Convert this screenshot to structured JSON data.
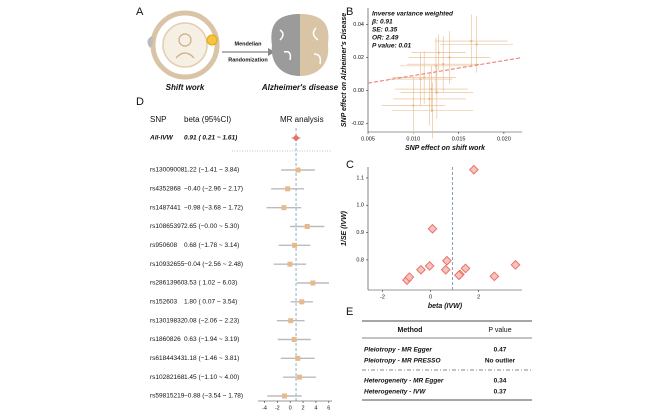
{
  "diagram": {
    "panel": "A",
    "exposure": "Shift work",
    "method": [
      "Mendelian",
      "Randomization"
    ],
    "outcome": "Alzheimer's disease"
  },
  "chart_data": [
    {
      "panel": "B",
      "type": "scatter",
      "xlabel": "SNP effect on shift work",
      "ylabel": "SNP effect on Alzheimer's Disease",
      "annotations": [
        "Inverse variance weighted",
        "β: 0.91",
        "SE: 0.35",
        "OR: 2.49",
        "P value: 0.01"
      ],
      "fit_slope": 0.91,
      "color": "#e8b98a",
      "line_color": "#e8736b",
      "marker": "circle",
      "x": [
        0.0125,
        0.0118,
        0.0121,
        0.017,
        0.0112,
        0.0126,
        0.0164,
        0.0128,
        0.012,
        0.0108,
        0.0133,
        0.014,
        0.01
      ],
      "values": [
        0.015,
        -0.005,
        -0.012,
        0.028,
        0.008,
        -0.001,
        0.03,
        0.023,
        0.001,
        0.007,
        0.016,
        0.02,
        -0.009
      ],
      "xerr": [
        0.004,
        0.004,
        0.0045,
        0.004,
        0.0035,
        0.004,
        0.004,
        0.003,
        0.004,
        0.0035,
        0.004,
        0.0045,
        0.0035
      ],
      "yerr": [
        0.017,
        0.016,
        0.017,
        0.017,
        0.016,
        0.016,
        0.016,
        0.011,
        0.014,
        0.016,
        0.017,
        0.016,
        0.017
      ],
      "xlim": [
        0.005,
        0.022
      ],
      "xticks": [
        {
          "value": 0.005,
          "label": "0.005"
        },
        {
          "value": 0.01,
          "label": "0.010"
        },
        {
          "value": 0.015,
          "label": "0.015"
        },
        {
          "value": 0.02,
          "label": "0.020"
        }
      ],
      "ylim": [
        -0.025,
        0.05
      ],
      "yticks": [
        {
          "value": -0.02,
          "label": "-0.02"
        },
        {
          "value": 0,
          "label": "0.00"
        },
        {
          "value": 0.02,
          "label": "0.02"
        },
        {
          "value": 0.04,
          "label": "0.04"
        }
      ]
    },
    {
      "panel": "D",
      "type": "forest",
      "columns": [
        "SNP",
        "beta (95%CI)",
        "MR analysis"
      ],
      "categories": [
        "All-IVW",
        "rs13009008",
        "rs4352868",
        "rs1487441",
        "rs10865397",
        "rs950608",
        "rs10932655",
        "rs28613960",
        "rs152603",
        "rs13019832",
        "rs1860826",
        "rs61844343",
        "rs10282168",
        "rs59815219"
      ],
      "values": [
        0.91,
        1.22,
        -0.4,
        -0.98,
        2.65,
        0.68,
        -0.04,
        3.53,
        1.8,
        0.08,
        0.63,
        1.18,
        1.45,
        -0.88
      ],
      "lower": [
        0.21,
        -1.41,
        -2.96,
        -3.68,
        -0.0,
        -1.78,
        -2.56,
        1.02,
        0.07,
        -2.06,
        -1.94,
        -1.46,
        -1.1,
        -3.54
      ],
      "upper": [
        1.61,
        3.84,
        2.17,
        1.72,
        5.3,
        3.14,
        2.48,
        6.03,
        3.54,
        2.23,
        3.19,
        3.81,
        4.0,
        1.78
      ],
      "value_labels": [
        "0.91 ( 0.21 ~ 1.61)",
        "1.22 (−1.41 ~ 3.84)",
        "−0.40 (−2.96 ~ 2.17)",
        "−0.98 (−3.68 ~ 1.72)",
        "2.65 (−0.00 ~ 5.30)",
        "0.68 (−1.78 ~ 3.14)",
        "−0.04 (−2.56 ~ 2.48)",
        "3.53 ( 1.02 ~ 6.03)",
        "1.80 ( 0.07 ~ 3.54)",
        "0.08 (−2.06 ~ 2.23)",
        "0.63 (−1.94 ~ 3.19)",
        "1.18 (−1.46 ~ 3.81)",
        "1.45 (−1.10 ~ 4.00)",
        "−0.88 (−3.54 ~ 1.78)"
      ],
      "ref_line": 0.91,
      "color": "#e8b98a",
      "summary_color": "#e8736b",
      "xlim": [
        -5,
        6.5
      ],
      "xticks": [
        -4,
        -2,
        0,
        2,
        4,
        6
      ]
    },
    {
      "panel": "C",
      "type": "scatter",
      "xlabel": "beta (IVW)",
      "ylabel": "1/SE (IVW)",
      "ref_line": 0.91,
      "color": "#e8736b",
      "marker": "diamond",
      "x": [
        1.22,
        -0.4,
        -0.98,
        2.65,
        0.68,
        -0.04,
        3.53,
        1.8,
        0.08,
        0.63,
        1.18,
        1.45,
        -0.88
      ],
      "values": [
        0.747,
        0.764,
        0.726,
        0.74,
        0.797,
        0.778,
        0.782,
        1.13,
        0.914,
        0.764,
        0.744,
        0.769,
        0.737
      ],
      "xlim": [
        -2.6,
        3.8
      ],
      "xticks": [
        -2,
        0,
        2
      ],
      "ylim": [
        0.69,
        1.14
      ],
      "yticks": [
        {
          "value": 0.8,
          "label": "0.8"
        },
        {
          "value": 0.9,
          "label": "0.9"
        },
        {
          "value": 1.0,
          "label": "1.0"
        },
        {
          "value": 1.1,
          "label": "1.1"
        }
      ]
    }
  ],
  "table": {
    "panel": "E",
    "header": [
      "Method",
      "P value"
    ],
    "rows": [
      [
        "Pleiotropy - MR Egger",
        "0.47"
      ],
      [
        "Pleiotropy - MR PRESSO",
        "No outlier"
      ],
      [
        "Heterogeneity - MR Egger",
        "0.34"
      ],
      [
        "Heterogeneity - IVW",
        "0.37"
      ]
    ]
  }
}
